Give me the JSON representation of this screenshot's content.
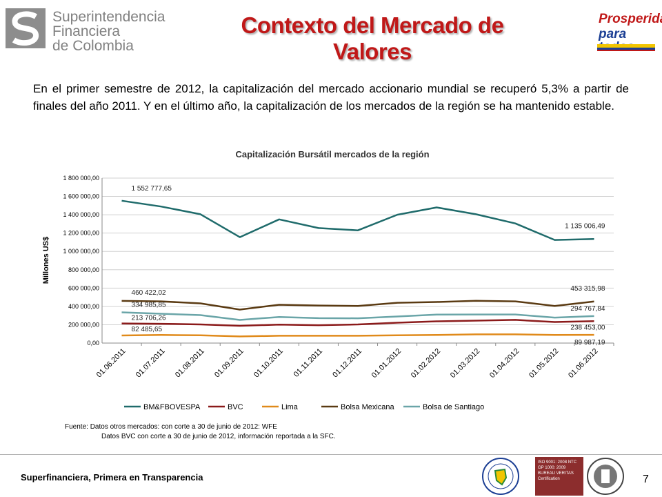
{
  "header": {
    "org_name_lines": [
      "Superintendencia",
      "Financiera",
      "de Colombia"
    ],
    "slide_title": "Contexto del Mercado de Valores",
    "gov_logo_lines": [
      "Prosperidad",
      "para todos"
    ]
  },
  "intro_text": "En el primer semestre de 2012, la capitalización del mercado accionario mundial se recuperó 5,3% a partir de finales del año 2011. Y en el último año, la capitalización de los mercados de la región se ha mantenido estable.",
  "chart_data": {
    "type": "line",
    "title": "Capitalización Bursátil mercados de la región",
    "xlabel": "",
    "ylabel": "Millones US$",
    "ylim": [
      0,
      1800000
    ],
    "yticks": [
      "0,00",
      "200 000,00",
      "400 000,00",
      "600 000,00",
      "800 000,00",
      "1 000 000,00",
      "1 200 000,00",
      "1 400 000,00",
      "1 600 000,00",
      "1 800 000,00"
    ],
    "grid": true,
    "legend": "bottom",
    "categories": [
      "01.06.2011",
      "01.07.2011",
      "01.08.2011",
      "01.09.2011",
      "01.10.2011",
      "01.11.2011",
      "01.12.2011",
      "01.01.2012",
      "01.02.2012",
      "01.03.2012",
      "01.04.2012",
      "01.05.2012",
      "01.06.2012"
    ],
    "series": [
      {
        "name": "BM&FBOVESPA",
        "color": "#1f6b6b",
        "values": [
          1552777.65,
          1490000,
          1405000,
          1155000,
          1350000,
          1255000,
          1230000,
          1400000,
          1480000,
          1405000,
          1305000,
          1125000,
          1135006.49
        ],
        "first_label": "1 552 777,65",
        "last_label": "1 135 006,49"
      },
      {
        "name": "BVC",
        "color": "#8b1a1a",
        "values": [
          213706.26,
          210000,
          203000,
          188000,
          202000,
          195000,
          203000,
          222000,
          237000,
          245000,
          253000,
          230000,
          238453.0
        ],
        "first_label": "213 706,26",
        "last_label": "238 453,00"
      },
      {
        "name": "Lima",
        "color": "#e08a1a",
        "values": [
          82485.65,
          88000,
          85000,
          72000,
          80000,
          80000,
          80000,
          85000,
          88000,
          95000,
          95000,
          88000,
          89987.19
        ],
        "first_label": "82 485,65",
        "last_label": "89 987,19"
      },
      {
        "name": "Bolsa Mexicana",
        "color": "#5a3a12",
        "values": [
          460422.02,
          455000,
          433000,
          365000,
          418000,
          410000,
          405000,
          440000,
          448000,
          462000,
          455000,
          405000,
          453315.98
        ],
        "first_label": "460 422,02",
        "last_label": "453 315,98"
      },
      {
        "name": "Bolsa de Santiago",
        "color": "#6aa5a8",
        "values": [
          334985.85,
          320000,
          305000,
          252000,
          285000,
          272000,
          270000,
          290000,
          310000,
          312000,
          312000,
          278000,
          294767.84
        ],
        "first_label": "334 985,85",
        "last_label": "294 767,84"
      }
    ]
  },
  "source": {
    "line1": "Fuente:  Datos otros mercados: con corte a 30 de junio de 2012: WFE",
    "line2": "Datos BVC con corte a 30 de junio de 2012, información reportada a la SFC."
  },
  "footer": {
    "motto": "Superfinanciera, Primera en Transparencia",
    "page_number": "7",
    "cert_text": "ISO 9001: 2008 NTC GP 1000: 2009 BUREAU VERITAS Certification"
  }
}
